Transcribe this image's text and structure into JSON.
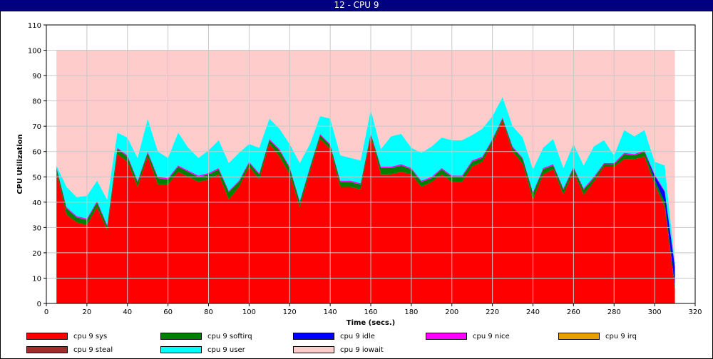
{
  "window": {
    "title": "12 - CPU 9"
  },
  "chart_data": {
    "type": "area",
    "stacked": true,
    "title": "",
    "xlabel": "Time (secs.)",
    "ylabel": "CPU Utilization",
    "xlim": [
      0,
      320
    ],
    "ylim": [
      0,
      110
    ],
    "xticks": [
      0,
      20,
      40,
      60,
      80,
      100,
      120,
      140,
      160,
      180,
      200,
      220,
      240,
      260,
      280,
      300,
      320
    ],
    "yticks": [
      0,
      10,
      20,
      30,
      40,
      50,
      60,
      70,
      80,
      90,
      100,
      110
    ],
    "grid": true,
    "legend_position": "bottom",
    "x": [
      5,
      10,
      15,
      20,
      25,
      30,
      35,
      40,
      45,
      50,
      55,
      60,
      65,
      70,
      75,
      80,
      85,
      90,
      95,
      100,
      105,
      110,
      115,
      120,
      125,
      130,
      135,
      140,
      145,
      150,
      155,
      160,
      165,
      170,
      175,
      180,
      185,
      190,
      195,
      200,
      205,
      210,
      215,
      220,
      225,
      230,
      235,
      240,
      245,
      250,
      255,
      260,
      265,
      270,
      275,
      280,
      285,
      290,
      295,
      300,
      305,
      310
    ],
    "series": [
      {
        "name": "cpu 9 sys",
        "color": "#ff0000",
        "values": [
          52,
          35,
          32,
          31,
          38,
          29,
          59,
          56,
          46,
          58,
          47,
          47,
          52,
          50,
          48,
          49,
          51,
          41,
          46,
          54,
          49,
          63,
          58,
          51,
          38,
          52,
          65,
          61,
          46,
          46,
          45,
          66,
          51,
          51,
          52,
          51,
          46,
          48,
          51,
          48,
          48,
          54,
          56,
          63,
          72,
          60,
          55,
          41,
          51,
          53,
          43,
          52,
          43,
          48,
          54,
          54,
          57,
          57,
          58,
          47,
          38,
          6
        ]
      },
      {
        "name": "cpu 9 softirq",
        "color": "#008000",
        "values": [
          1.5,
          2.5,
          2,
          2,
          2,
          1.5,
          2,
          2,
          2,
          1.5,
          2.5,
          2,
          2,
          2,
          2,
          2,
          2,
          3,
          2,
          1.5,
          2,
          1.5,
          2.5,
          2.5,
          2,
          1.5,
          1.5,
          1.5,
          2,
          2,
          2,
          1,
          2.5,
          2.5,
          2.5,
          2,
          2,
          1.5,
          2,
          2,
          2,
          2,
          1.5,
          1.5,
          1,
          1.5,
          2,
          2.5,
          2,
          1.5,
          2,
          1.5,
          2,
          1.5,
          1,
          1,
          2,
          1.5,
          2,
          2,
          2,
          1
        ]
      },
      {
        "name": "cpu 9 idle",
        "color": "#0000ff",
        "values": [
          0,
          0,
          0,
          0,
          0,
          0,
          0,
          0,
          0,
          0,
          0,
          0,
          0,
          0,
          0,
          0,
          0,
          0,
          0,
          0,
          0,
          0,
          0,
          0,
          0,
          0,
          0,
          0,
          0,
          0,
          0,
          0,
          0,
          0,
          0,
          0,
          0,
          0,
          0,
          0,
          0,
          0,
          0,
          0,
          0,
          0,
          0,
          0,
          0,
          0,
          0,
          0,
          0,
          0,
          0,
          0,
          0,
          0,
          0,
          1.5,
          4,
          7.5
        ]
      },
      {
        "name": "cpu 9 nice",
        "color": "#ff00ff",
        "values": [
          0.5,
          0.5,
          0.5,
          0.5,
          0.5,
          0.5,
          0.5,
          0.5,
          0.5,
          0.5,
          0.5,
          0.5,
          0.5,
          0.5,
          0.5,
          0.5,
          0.5,
          0.5,
          0.5,
          0.5,
          0.5,
          0.5,
          0.5,
          0.5,
          0.5,
          0.5,
          0.5,
          0.5,
          0.5,
          0.5,
          0.5,
          0.5,
          0.5,
          0.5,
          0.5,
          0.5,
          0.5,
          0.5,
          0.5,
          0.5,
          0.5,
          0.5,
          0.5,
          0.5,
          0.5,
          0.5,
          0.5,
          0.5,
          0.5,
          0.5,
          0.5,
          0.5,
          0.5,
          0.5,
          0.5,
          0.5,
          0.5,
          0.5,
          0.5,
          0.5,
          0.5,
          0.5
        ]
      },
      {
        "name": "cpu 9 irq",
        "color": "#e8a000",
        "values": [
          0,
          0,
          0,
          0,
          0,
          0,
          0,
          0,
          0,
          0,
          0,
          0,
          0,
          0,
          0,
          0,
          0,
          0,
          0,
          0,
          0,
          0,
          0,
          0,
          0,
          0,
          0,
          0,
          0,
          0,
          0,
          0,
          0,
          0,
          0,
          0,
          0,
          0,
          0,
          0,
          0,
          0,
          0,
          0,
          0,
          0,
          0,
          0,
          0,
          0,
          0,
          0,
          0,
          0,
          0,
          0,
          0,
          0,
          0,
          0,
          0,
          0
        ]
      },
      {
        "name": "cpu 9 steal",
        "color": "#a52a2a",
        "values": [
          0,
          0,
          0,
          0,
          0,
          0,
          0,
          0,
          0,
          0,
          0,
          0,
          0,
          0,
          0,
          0,
          0,
          0,
          0,
          0,
          0,
          0,
          0,
          0,
          0,
          0,
          0,
          0,
          0,
          0,
          0,
          0,
          0,
          0,
          0,
          0,
          0,
          0,
          0,
          0,
          0,
          0,
          0,
          0,
          0,
          0,
          0,
          0,
          0,
          0,
          0,
          0,
          0,
          0,
          0,
          0,
          0,
          0,
          0,
          0,
          0,
          0
        ]
      },
      {
        "name": "cpu 9 user",
        "color": "#00ffff",
        "values": [
          0.5,
          8,
          7.5,
          9,
          8,
          10,
          6,
          7,
          9,
          13,
          10,
          8,
          13,
          9,
          7,
          9,
          11,
          11,
          11,
          7,
          10,
          8,
          8,
          9,
          15,
          9,
          7,
          10,
          10,
          9,
          9,
          9,
          7,
          12,
          12,
          8,
          11,
          12,
          12,
          14,
          14,
          10,
          11,
          9,
          8,
          8,
          8,
          9,
          8,
          10,
          8,
          9,
          9,
          12,
          9,
          3,
          9,
          7,
          8,
          5,
          10,
          1
        ]
      },
      {
        "name": "cpu 9 iowait",
        "color": "#ffcccc",
        "values": [
          45.5,
          54,
          58,
          57.5,
          51.5,
          59,
          32.5,
          34.5,
          42.5,
          27,
          40,
          42.5,
          32.5,
          38.5,
          42.5,
          39.5,
          35.5,
          44.5,
          40.5,
          37,
          38.5,
          27,
          31,
          37,
          44.5,
          37,
          26,
          27,
          41.5,
          42.5,
          43.5,
          23.5,
          39,
          34,
          33,
          38.5,
          40.5,
          38,
          34.5,
          35.5,
          35.5,
          33.5,
          31,
          26,
          18.5,
          30,
          34.5,
          47,
          38.5,
          35,
          46.5,
          37,
          45.5,
          38,
          35.5,
          41.5,
          31.5,
          34,
          31.5,
          44,
          45.5,
          84
        ]
      }
    ]
  }
}
